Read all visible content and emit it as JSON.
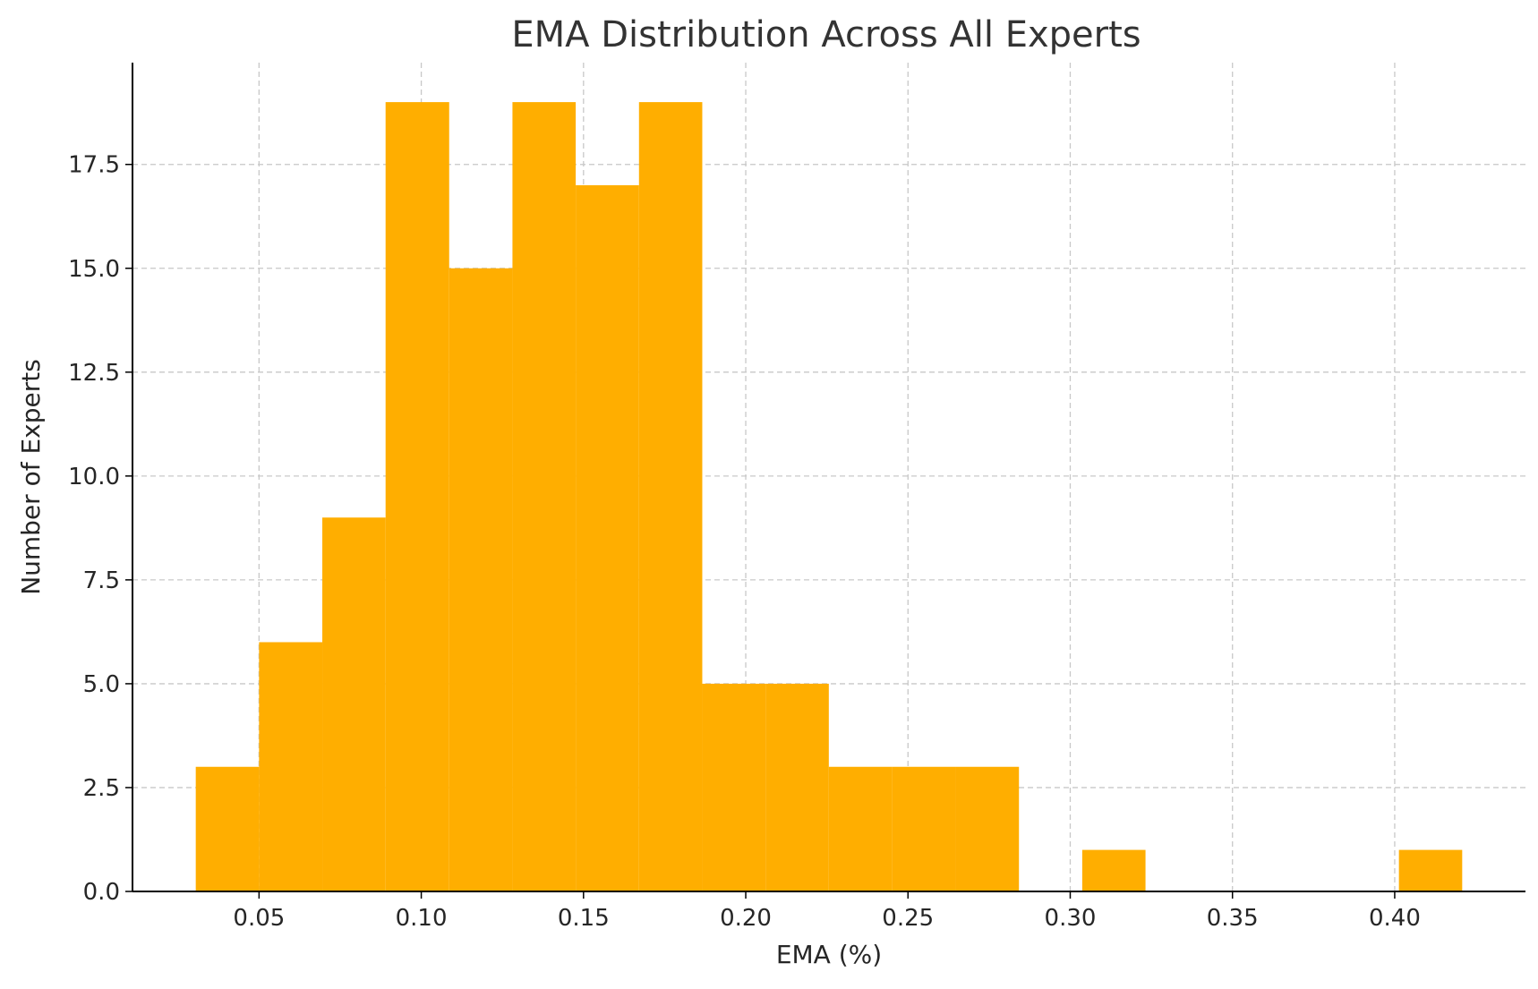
{
  "chart_data": {
    "type": "bar",
    "title": "EMA Distribution Across All Experts",
    "xlabel": "EMA (%)",
    "ylabel": "Number of Experts",
    "bins": [
      {
        "x0": 0.0305,
        "x1": 0.05,
        "count": 3
      },
      {
        "x0": 0.05,
        "x1": 0.0695,
        "count": 6
      },
      {
        "x0": 0.0695,
        "x1": 0.089,
        "count": 9
      },
      {
        "x0": 0.089,
        "x1": 0.1086,
        "count": 19
      },
      {
        "x0": 0.1086,
        "x1": 0.1281,
        "count": 15
      },
      {
        "x0": 0.1281,
        "x1": 0.1476,
        "count": 19
      },
      {
        "x0": 0.1476,
        "x1": 0.1671,
        "count": 17
      },
      {
        "x0": 0.1671,
        "x1": 0.1866,
        "count": 19
      },
      {
        "x0": 0.1866,
        "x1": 0.2061,
        "count": 5
      },
      {
        "x0": 0.2061,
        "x1": 0.2256,
        "count": 5
      },
      {
        "x0": 0.2256,
        "x1": 0.2452,
        "count": 3
      },
      {
        "x0": 0.2452,
        "x1": 0.2647,
        "count": 3
      },
      {
        "x0": 0.2647,
        "x1": 0.2842,
        "count": 3
      },
      {
        "x0": 0.2842,
        "x1": 0.3037,
        "count": 0
      },
      {
        "x0": 0.3037,
        "x1": 0.3232,
        "count": 1
      },
      {
        "x0": 0.3232,
        "x1": 0.3427,
        "count": 0
      },
      {
        "x0": 0.3427,
        "x1": 0.3623,
        "count": 0
      },
      {
        "x0": 0.3623,
        "x1": 0.3818,
        "count": 0
      },
      {
        "x0": 0.3818,
        "x1": 0.4013,
        "count": 0
      },
      {
        "x0": 0.4013,
        "x1": 0.4208,
        "count": 1
      }
    ],
    "xticks": [
      "0.05",
      "0.10",
      "0.15",
      "0.20",
      "0.25",
      "0.30",
      "0.35",
      "0.40"
    ],
    "yticks": [
      "0.0",
      "2.5",
      "5.0",
      "7.5",
      "10.0",
      "12.5",
      "15.0",
      "17.5"
    ],
    "xlim": [
      0.011,
      0.4403
    ],
    "ylim": [
      0,
      19.95
    ],
    "grid": true,
    "legend": "none",
    "bar_color": "#FFAE00",
    "grid_color": "#C8C8C8",
    "axis_color": "#000000"
  }
}
